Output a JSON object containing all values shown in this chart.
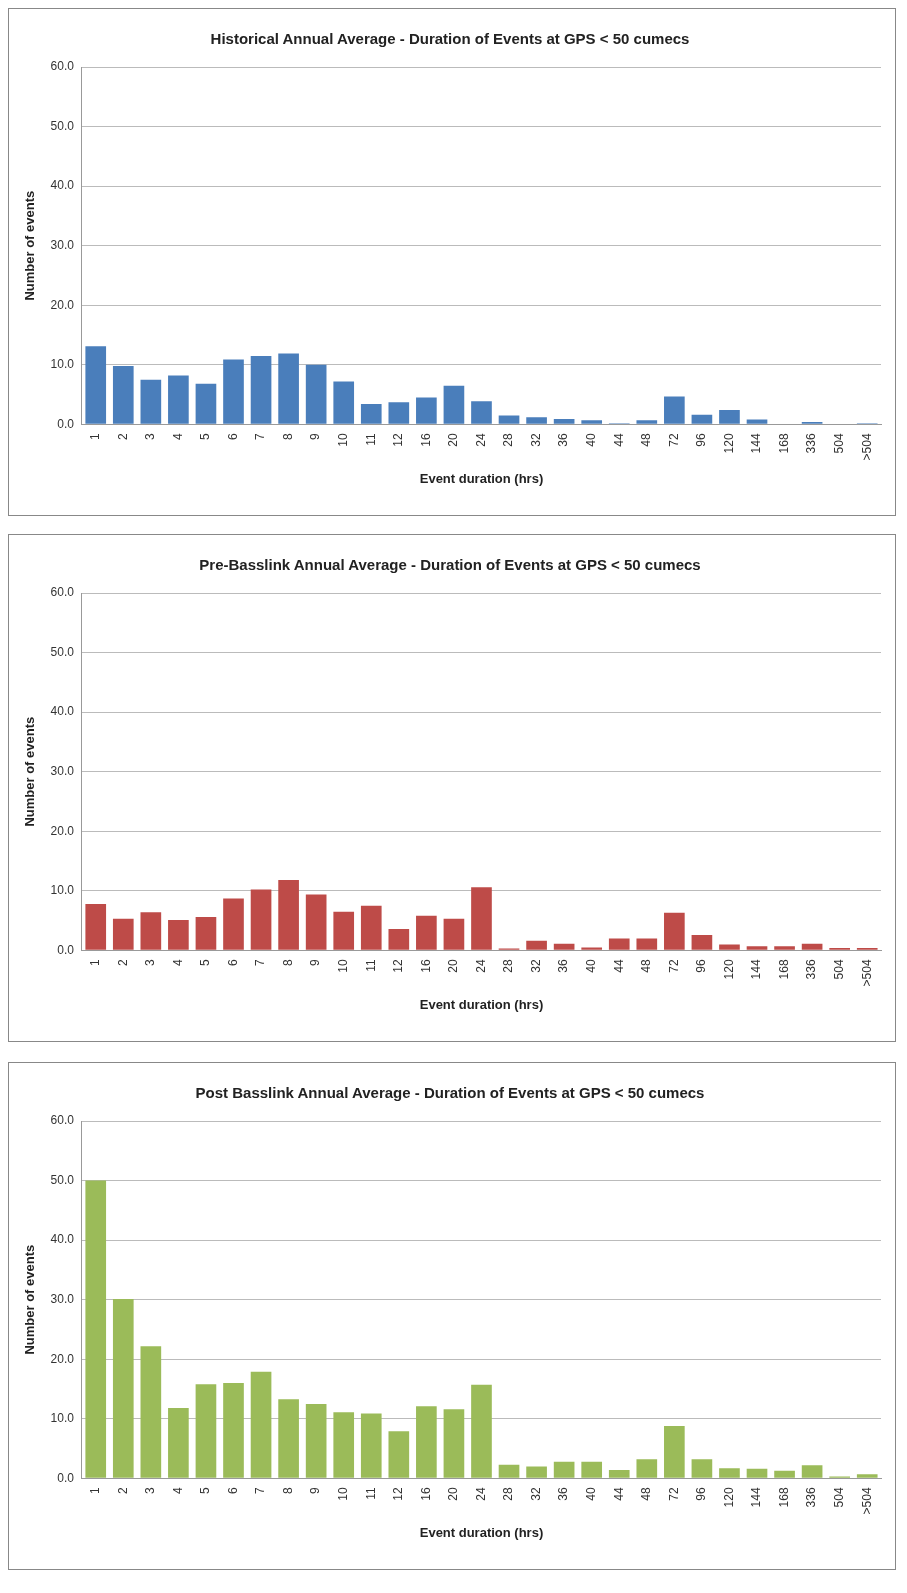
{
  "chart_data": [
    {
      "type": "bar",
      "title": "Historical Annual Average - Duration of Events at GPS < 50 cumecs",
      "xlabel": "Event duration (hrs)",
      "ylabel": "Number of events",
      "categories": [
        "1",
        "2",
        "3",
        "4",
        "5",
        "6",
        "7",
        "8",
        "9",
        "10",
        "11",
        "12",
        "16",
        "20",
        "24",
        "28",
        "32",
        "36",
        "40",
        "44",
        "48",
        "72",
        "96",
        "120",
        "144",
        "168",
        "336",
        "504",
        ">504"
      ],
      "values": [
        13.1,
        9.8,
        7.5,
        8.2,
        6.8,
        10.9,
        11.5,
        11.9,
        10.0,
        7.2,
        3.4,
        3.7,
        4.5,
        6.5,
        3.9,
        1.5,
        1.2,
        0.9,
        0.7,
        0.2,
        0.7,
        4.7,
        1.6,
        2.4,
        0.8,
        0,
        0.4,
        0,
        0.2
      ],
      "color": "#4a7ebb",
      "ylim": [
        0,
        60
      ],
      "yticks": [
        {
          "value": 0,
          "label": "0.0"
        },
        {
          "value": 10,
          "label": "10.0"
        },
        {
          "value": 20,
          "label": "20.0"
        },
        {
          "value": 30,
          "label": "30.0"
        },
        {
          "value": 40,
          "label": "40.0"
        },
        {
          "value": 50,
          "label": "50.0"
        },
        {
          "value": 60,
          "label": "60.0"
        }
      ],
      "grid": "y"
    },
    {
      "type": "bar",
      "title": "Pre-Basslink Annual Average - Duration of Events at GPS < 50 cumecs",
      "xlabel": "Event duration (hrs)",
      "ylabel": "Number of events",
      "categories": [
        "1",
        "2",
        "3",
        "4",
        "5",
        "6",
        "7",
        "8",
        "9",
        "10",
        "11",
        "12",
        "16",
        "20",
        "24",
        "28",
        "32",
        "36",
        "40",
        "44",
        "48",
        "72",
        "96",
        "120",
        "144",
        "168",
        "336",
        "504",
        ">504"
      ],
      "values": [
        7.8,
        5.3,
        6.4,
        5.1,
        5.6,
        8.7,
        10.2,
        11.8,
        9.4,
        6.5,
        7.5,
        3.6,
        5.8,
        5.3,
        10.6,
        0.3,
        1.6,
        1.1,
        0.5,
        2.0,
        2.0,
        6.3,
        2.6,
        1.0,
        0.7,
        0.7,
        1.1,
        0.4,
        0.4
      ],
      "color": "#be4b48",
      "ylim": [
        0,
        60
      ],
      "yticks": [
        {
          "value": 0,
          "label": "0.0"
        },
        {
          "value": 10,
          "label": "10.0"
        },
        {
          "value": 20,
          "label": "20.0"
        },
        {
          "value": 30,
          "label": "30.0"
        },
        {
          "value": 40,
          "label": "40.0"
        },
        {
          "value": 50,
          "label": "50.0"
        },
        {
          "value": 60,
          "label": "60.0"
        }
      ],
      "grid": "y"
    },
    {
      "type": "bar",
      "title": "Post Basslink Annual Average - Duration of Events at GPS < 50 cumecs",
      "xlabel": "Event duration (hrs)",
      "ylabel": "Number of events",
      "categories": [
        "1",
        "2",
        "3",
        "4",
        "5",
        "6",
        "7",
        "8",
        "9",
        "10",
        "11",
        "12",
        "16",
        "20",
        "24",
        "28",
        "32",
        "36",
        "40",
        "44",
        "48",
        "72",
        "96",
        "120",
        "144",
        "168",
        "336",
        "504",
        ">504"
      ],
      "values": [
        50.0,
        30.1,
        22.2,
        11.8,
        15.8,
        16.0,
        17.9,
        13.3,
        12.5,
        11.1,
        10.9,
        7.9,
        12.1,
        11.6,
        15.7,
        2.3,
        2.0,
        2.8,
        2.8,
        1.4,
        3.2,
        8.8,
        3.2,
        1.7,
        1.6,
        1.3,
        2.2,
        0.3,
        0.7
      ],
      "color": "#9bbb59",
      "ylim": [
        0,
        60
      ],
      "yticks": [
        {
          "value": 0,
          "label": "0.0"
        },
        {
          "value": 10,
          "label": "10.0"
        },
        {
          "value": 20,
          "label": "20.0"
        },
        {
          "value": 30,
          "label": "30.0"
        },
        {
          "value": 40,
          "label": "40.0"
        },
        {
          "value": 50,
          "label": "50.0"
        },
        {
          "value": 60,
          "label": "60.0"
        }
      ],
      "grid": "y"
    }
  ]
}
